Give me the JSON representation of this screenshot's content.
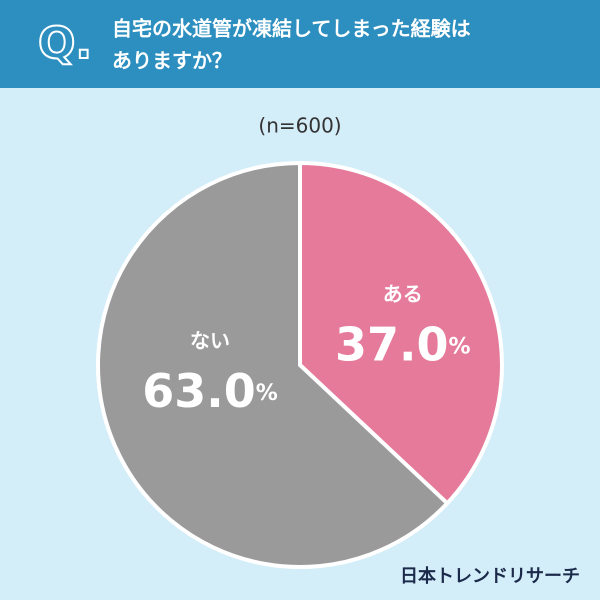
{
  "chart_data": {
    "type": "pie",
    "badge": "Q.",
    "title_lines": [
      "自宅の水道管が凍結してしまった経験は",
      "ありますか？"
    ],
    "subtitle": "(n=600)",
    "categories": [
      "ある",
      "ない"
    ],
    "values": [
      37.0,
      63.0
    ],
    "value_labels": [
      "37.0%",
      "63.0%"
    ],
    "colors": [
      "#e57a9a",
      "#9a9a9a"
    ],
    "source": "日本トレンドリサーチ"
  }
}
